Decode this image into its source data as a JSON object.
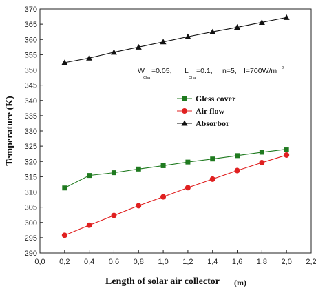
{
  "chart_data": {
    "type": "line",
    "title": "",
    "xlabel_main": "Length of solar air collector",
    "xlabel_unit": "(m)",
    "ylabel": "Temperature (K)",
    "xlim": [
      0.0,
      2.2
    ],
    "ylim": [
      290,
      370
    ],
    "x_ticks": [
      0.0,
      0.2,
      0.4,
      0.6,
      0.8,
      1.0,
      1.2,
      1.4,
      1.6,
      1.8,
      2.0,
      2.2
    ],
    "x_tick_labels": [
      "0,0",
      "0,2",
      "0,4",
      "0,6",
      "0,8",
      "1,0",
      "1,2",
      "1,4",
      "1,6",
      "1,8",
      "2,0",
      "2,2"
    ],
    "y_ticks": [
      290,
      295,
      300,
      305,
      310,
      315,
      320,
      325,
      330,
      335,
      340,
      345,
      350,
      355,
      360,
      365,
      370
    ],
    "y_tick_labels": [
      "290",
      "295",
      "300",
      "305",
      "310",
      "315",
      "320",
      "325",
      "330",
      "335",
      "340",
      "345",
      "350",
      "355",
      "360",
      "365",
      "370"
    ],
    "grid": false,
    "legend_position": "center-right",
    "x": [
      0.2,
      0.4,
      0.6,
      0.8,
      1.0,
      1.2,
      1.4,
      1.6,
      1.8,
      2.0
    ],
    "series": [
      {
        "name": "Gless cover",
        "marker": "square",
        "color": "#1f7a1f",
        "values": [
          311.3,
          315.4,
          316.3,
          317.5,
          318.6,
          319.8,
          320.8,
          321.9,
          323.0,
          324.0
        ]
      },
      {
        "name": "Air flow",
        "marker": "circle",
        "color": "#e02020",
        "values": [
          295.8,
          299.1,
          302.3,
          305.5,
          308.4,
          311.4,
          314.2,
          317.0,
          319.6,
          322.1
        ]
      },
      {
        "name": "Absorbor",
        "marker": "triangle",
        "color": "#111111",
        "values": [
          352.4,
          353.9,
          355.8,
          357.5,
          359.2,
          360.9,
          362.5,
          364.0,
          365.6,
          367.2
        ]
      }
    ],
    "annotation": {
      "w_main": "W",
      "w_sub": "Cha",
      "w_val": "=0.05,",
      "l_main": "L",
      "l_sub": "Cha",
      "l_val": "=0.1,",
      "n_text": "n=5,",
      "i_text": "I=700W/m",
      "i_sup": "2"
    }
  }
}
